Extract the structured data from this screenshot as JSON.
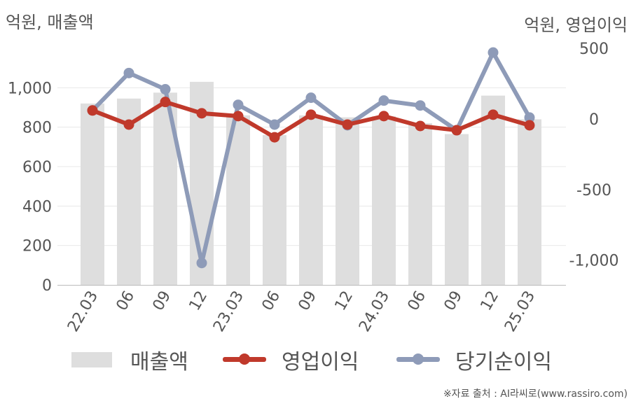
{
  "header": {
    "left_unit": "억원, 매출액",
    "right_unit": "억원, 영업이익"
  },
  "legend": {
    "revenue": "매출액",
    "operating_profit": "영업이익",
    "net_income": "당기순이익"
  },
  "source": "※자료 출처 : AI라씨로(www.rassiro.com)",
  "colors": {
    "revenue_bar": "#dedede",
    "operating_profit": "#c0392b",
    "net_income": "#8e9bb8",
    "grid": "#e8e8e8",
    "axis": "#bbbbbb"
  },
  "chart_data": {
    "type": "bar",
    "categories": [
      "22.03",
      "06",
      "09",
      "12",
      "23.03",
      "06",
      "09",
      "12",
      "24.03",
      "06",
      "09",
      "12",
      "25.03"
    ],
    "left_axis": {
      "ticks": [
        "0",
        "200",
        "400",
        "600",
        "800",
        "1,000"
      ],
      "ylim": [
        0,
        1200
      ]
    },
    "right_axis": {
      "ticks": [
        "500",
        "0",
        "-500",
        "-1,000"
      ],
      "ylim": [
        -1175,
        500
      ]
    },
    "series": [
      {
        "name": "매출액",
        "type": "bar",
        "axis": "left",
        "values": [
          920,
          945,
          975,
          1030,
          860,
          760,
          860,
          850,
          855,
          820,
          765,
          960,
          840
        ]
      },
      {
        "name": "영업이익",
        "type": "line",
        "axis": "right",
        "values": [
          60,
          -40,
          120,
          40,
          20,
          -130,
          30,
          -40,
          20,
          -50,
          -80,
          30,
          -45
        ]
      },
      {
        "name": "당기순이익",
        "type": "line",
        "axis": "right",
        "values": [
          60,
          325,
          210,
          -1020,
          100,
          -40,
          150,
          -45,
          130,
          95,
          -80,
          470,
          10
        ]
      }
    ],
    "grid": true,
    "legend_position": "bottom"
  }
}
